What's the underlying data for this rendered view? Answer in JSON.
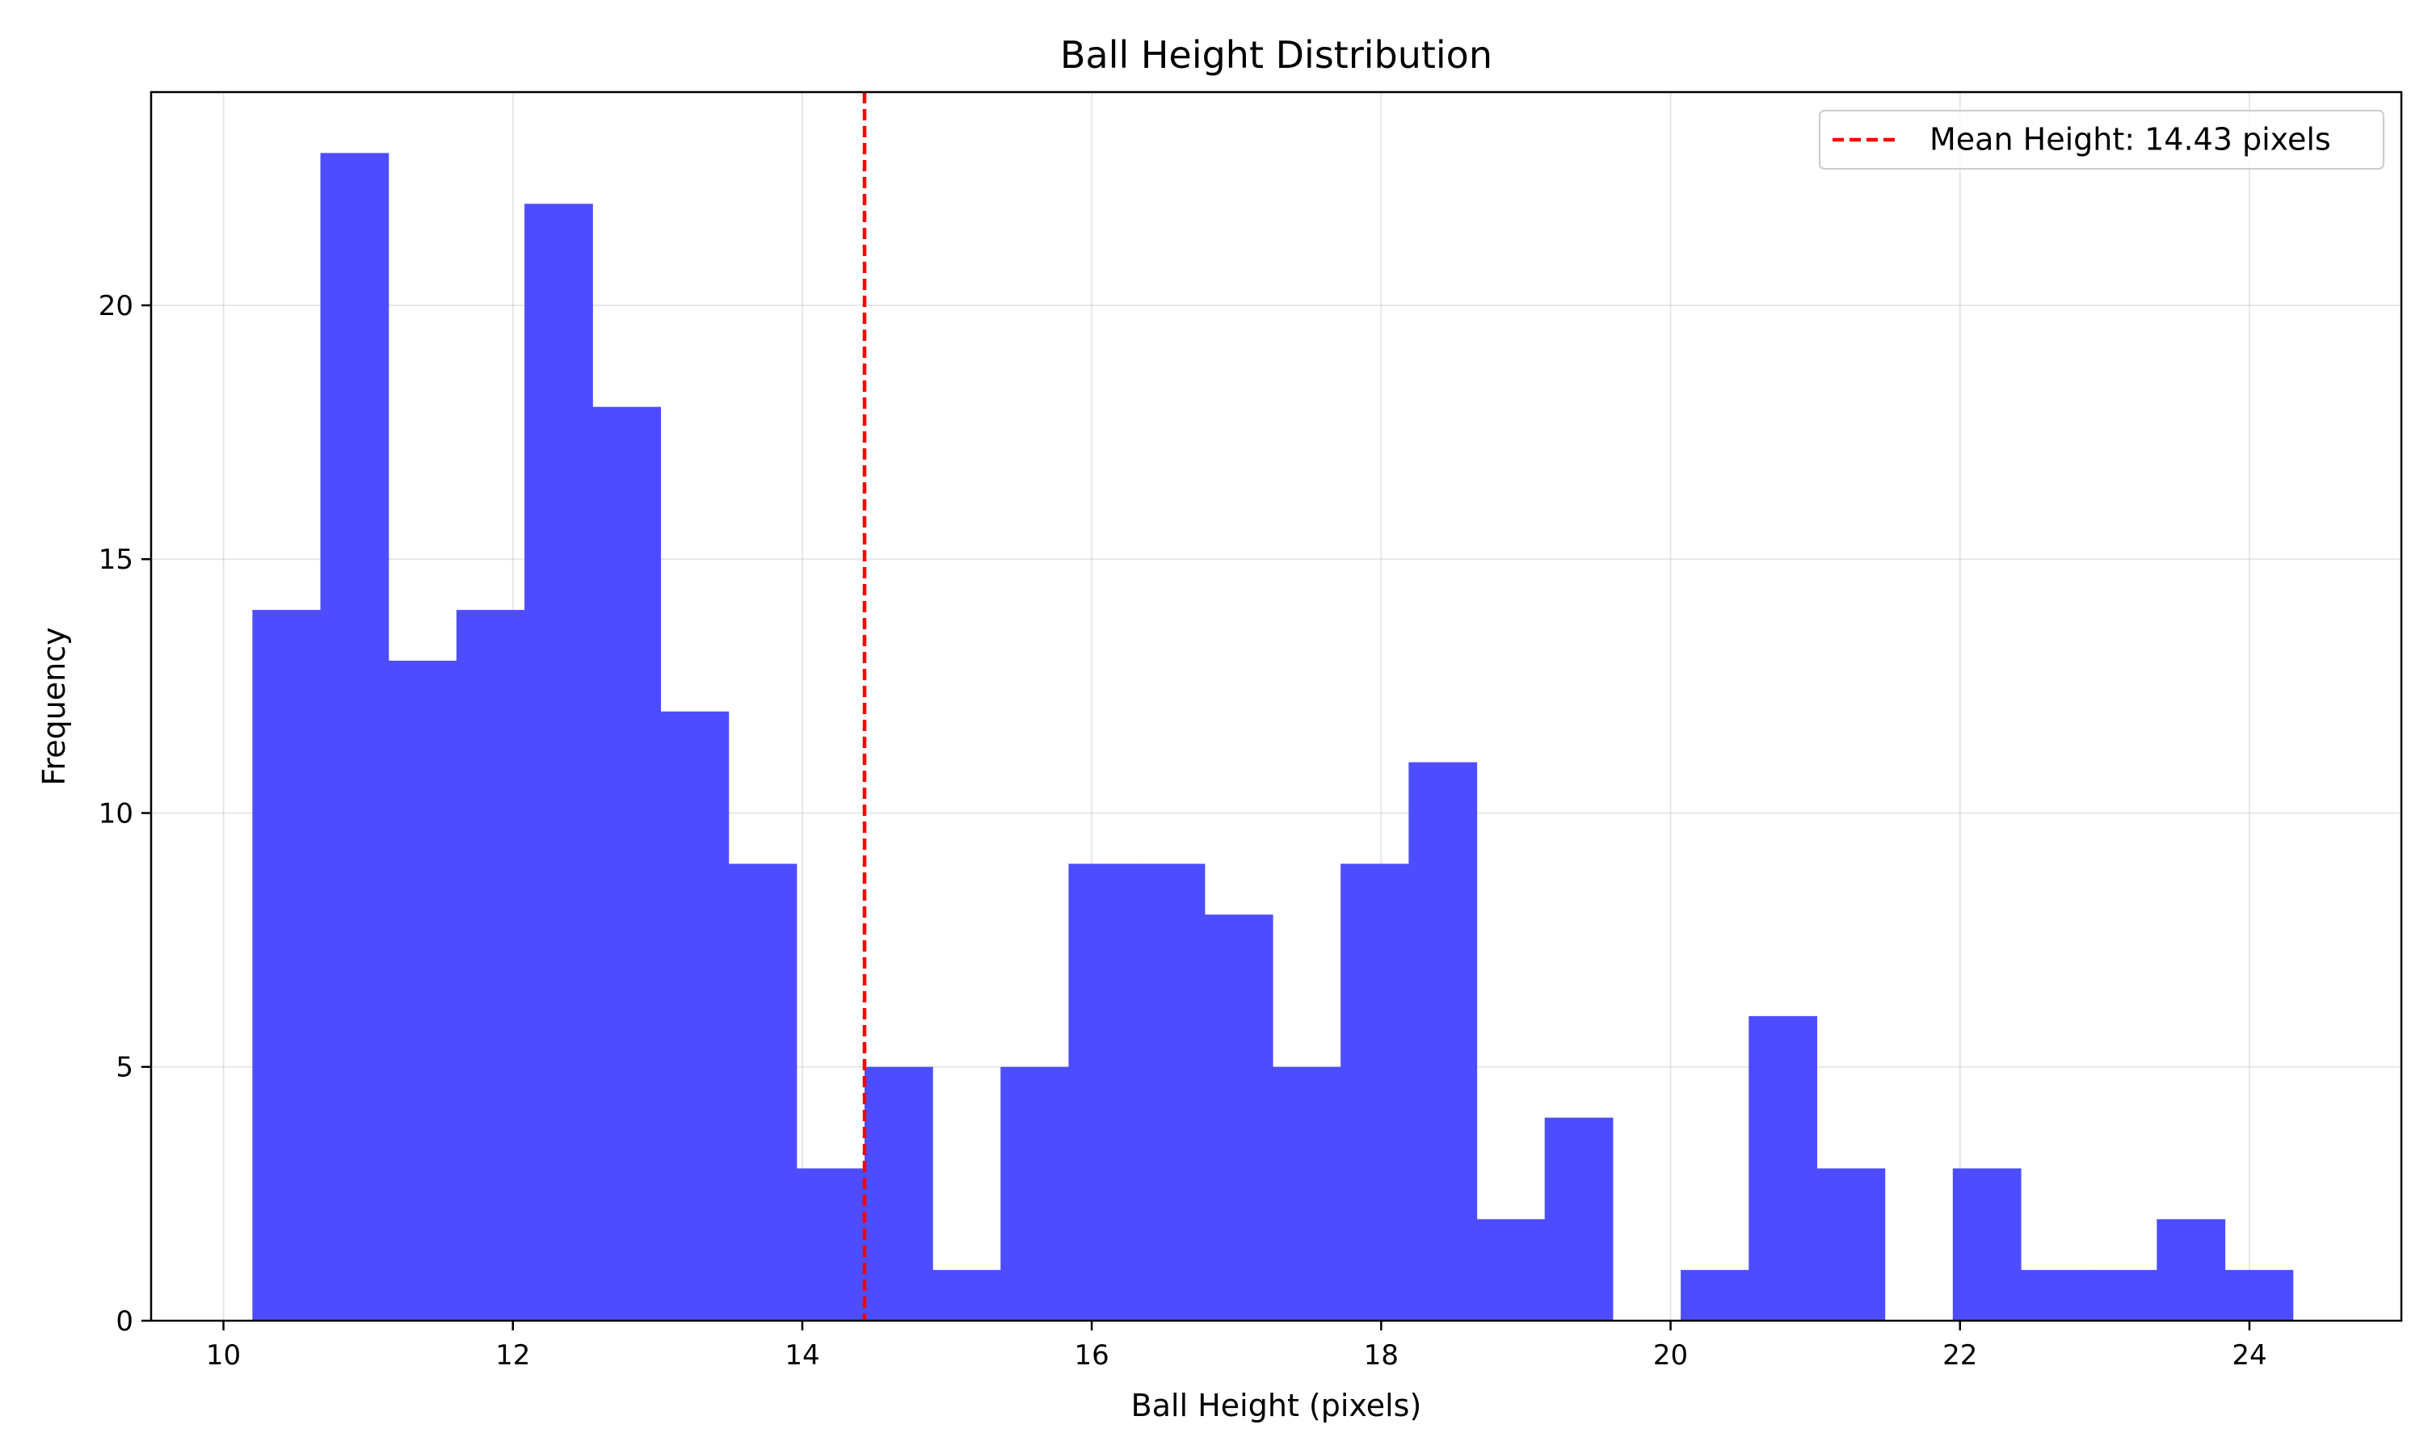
{
  "chart_data": {
    "type": "bar",
    "title": "Ball Height Distribution",
    "xlabel": "Ball Height (pixels)",
    "ylabel": "Frequency",
    "bin_start": 10.2,
    "bin_width": 0.47,
    "values": [
      14,
      23,
      13,
      14,
      22,
      18,
      12,
      9,
      3,
      5,
      1,
      5,
      9,
      9,
      8,
      5,
      9,
      11,
      2,
      4,
      0,
      1,
      6,
      3,
      0,
      3,
      1,
      1,
      2,
      1
    ],
    "bar_color": "#4d4dff",
    "mean_line": {
      "value": 14.43,
      "color": "#ff0000",
      "label": "Mean Height: 14.43 pixels"
    },
    "xlim": [
      9.5,
      25.05
    ],
    "ylim": [
      0,
      24.2
    ],
    "x_ticks": [
      10,
      12,
      14,
      16,
      18,
      20,
      22,
      24
    ],
    "y_ticks": [
      0,
      5,
      10,
      15,
      20
    ],
    "grid": true,
    "legend_position": "top-right"
  }
}
